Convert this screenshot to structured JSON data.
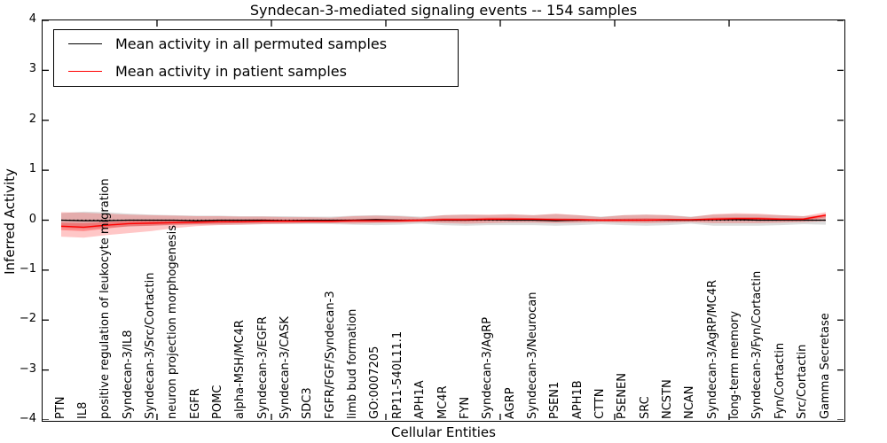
{
  "chart_data": {
    "type": "line",
    "title": "Syndecan-3-mediated signaling events -- 154 samples",
    "xlabel": "Cellular Entities",
    "ylabel": "Inferred Activity",
    "ylim": [
      -4,
      4
    ],
    "ytick_labels": [
      "4",
      "3",
      "2",
      "1",
      "0",
      "−1",
      "−2",
      "−3",
      "−4"
    ],
    "x_major_tick_units": [
      5,
      10,
      15,
      20,
      25,
      30
    ],
    "grid": false,
    "legend_position": "upper left",
    "legend": [
      {
        "label": "Mean activity in all permuted samples",
        "color": "#000000"
      },
      {
        "label": "Mean activity in patient samples",
        "color": "#ff0000"
      }
    ],
    "zero_line": {
      "style": "dashed",
      "color": "#000000"
    },
    "categories": [
      "PTN",
      "IL8",
      "positive regulation of leukocyte migration",
      "Syndecan-3/IL8",
      "Syndecan-3/Src/Cortactin",
      "neuron projection morphogenesis",
      "EGFR",
      "POMC",
      "alpha-MSH/MC4R",
      "Syndecan-3/EGFR",
      "Syndecan-3/CASK",
      "SDC3",
      "FGFR/FGF/Syndecan-3",
      "limb bud formation",
      "GO:0007205",
      "RP11-540L11.1",
      "APH1A",
      "MC4R",
      "FYN",
      "Syndecan-3/AgRP",
      "AGRP",
      "Syndecan-3/Neurocan",
      "PSEN1",
      "APH1B",
      "CTTN",
      "PSENEN",
      "SRC",
      "NCSTN",
      "NCAN",
      "Syndecan-3/AgRP/MC4R",
      "long-term memory",
      "Syndecan-3/Fyn/Cortactin",
      "Fyn/Cortactin",
      "Src/Cortactin",
      "Gamma Secretase"
    ],
    "series": [
      {
        "name": "Mean activity in all permuted samples",
        "color": "#000000",
        "values": [
          0,
          -0.01,
          -0.01,
          0,
          0,
          0,
          -0.01,
          0,
          0,
          0,
          -0.01,
          0,
          0,
          0,
          0.01,
          0,
          0,
          0,
          0,
          0.01,
          0,
          0,
          -0.01,
          0,
          0,
          0,
          0,
          0,
          0,
          0.01,
          0.01,
          0,
          0,
          0,
          0
        ]
      },
      {
        "name": "Mean activity in patient samples",
        "color": "#ff0000",
        "values": [
          -0.12,
          -0.14,
          -0.1,
          -0.07,
          -0.06,
          -0.05,
          -0.04,
          -0.03,
          -0.03,
          -0.02,
          -0.02,
          -0.02,
          -0.02,
          -0.01,
          -0.01,
          -0.01,
          0.0,
          0.01,
          0.01,
          0.02,
          0.02,
          0.02,
          0.01,
          0.01,
          0.0,
          0.0,
          0.0,
          0.01,
          0.01,
          0.02,
          0.03,
          0.03,
          0.02,
          0.02,
          0.1
        ]
      }
    ],
    "bands": [
      {
        "name": "permuted-range",
        "color": "rgba(100,100,100,0.22)",
        "upper": [
          0.14,
          0.17,
          0.16,
          0.13,
          0.11,
          0.1,
          0.09,
          0.09,
          0.08,
          0.08,
          0.08,
          0.07,
          0.07,
          0.09,
          0.1,
          0.09,
          0.07,
          0.1,
          0.11,
          0.1,
          0.11,
          0.1,
          0.12,
          0.1,
          0.07,
          0.1,
          0.11,
          0.1,
          0.07,
          0.11,
          0.12,
          0.11,
          0.1,
          0.08,
          0.1
        ],
        "lower": [
          -0.15,
          -0.17,
          -0.15,
          -0.13,
          -0.11,
          -0.1,
          -0.09,
          -0.09,
          -0.09,
          -0.08,
          -0.08,
          -0.08,
          -0.08,
          -0.09,
          -0.1,
          -0.09,
          -0.07,
          -0.1,
          -0.11,
          -0.1,
          -0.1,
          -0.1,
          -0.11,
          -0.1,
          -0.08,
          -0.1,
          -0.11,
          -0.1,
          -0.07,
          -0.11,
          -0.11,
          -0.11,
          -0.1,
          -0.08,
          -0.09
        ]
      },
      {
        "name": "patient-range-outer",
        "color": "rgba(255,0,0,0.22)",
        "upper": [
          0.16,
          0.15,
          0.13,
          0.11,
          0.1,
          0.09,
          0.08,
          0.08,
          0.07,
          0.07,
          0.06,
          0.06,
          0.05,
          0.08,
          0.09,
          0.08,
          0.05,
          0.1,
          0.11,
          0.11,
          0.12,
          0.1,
          0.13,
          0.1,
          0.06,
          0.1,
          0.11,
          0.1,
          0.06,
          0.12,
          0.14,
          0.13,
          0.1,
          0.08,
          0.16
        ],
        "lower": [
          -0.33,
          -0.35,
          -0.3,
          -0.26,
          -0.22,
          -0.16,
          -0.12,
          -0.1,
          -0.09,
          -0.08,
          -0.07,
          -0.06,
          -0.06,
          -0.07,
          -0.06,
          -0.05,
          -0.04,
          -0.06,
          -0.07,
          -0.06,
          -0.05,
          -0.05,
          -0.06,
          -0.05,
          -0.04,
          -0.05,
          -0.06,
          -0.05,
          -0.04,
          -0.06,
          -0.06,
          -0.06,
          -0.05,
          -0.04,
          -0.02
        ]
      },
      {
        "name": "patient-range-inner",
        "color": "rgba(255,0,0,0.30)",
        "upper": [
          -0.05,
          -0.06,
          -0.04,
          -0.02,
          -0.01,
          0.0,
          0.0,
          0.01,
          0.01,
          0.02,
          0.01,
          0.01,
          0.01,
          0.02,
          0.03,
          0.02,
          0.02,
          0.04,
          0.04,
          0.05,
          0.05,
          0.04,
          0.04,
          0.03,
          0.02,
          0.03,
          0.04,
          0.03,
          0.02,
          0.05,
          0.06,
          0.06,
          0.04,
          0.04,
          0.12
        ],
        "lower": [
          -0.2,
          -0.22,
          -0.17,
          -0.12,
          -0.11,
          -0.09,
          -0.08,
          -0.07,
          -0.06,
          -0.05,
          -0.05,
          -0.05,
          -0.05,
          -0.04,
          -0.04,
          -0.04,
          -0.03,
          -0.02,
          -0.02,
          -0.01,
          -0.01,
          -0.01,
          -0.02,
          -0.02,
          -0.02,
          -0.02,
          -0.02,
          -0.02,
          -0.02,
          -0.01,
          0.0,
          0.0,
          -0.01,
          -0.01,
          0.06
        ]
      }
    ]
  }
}
